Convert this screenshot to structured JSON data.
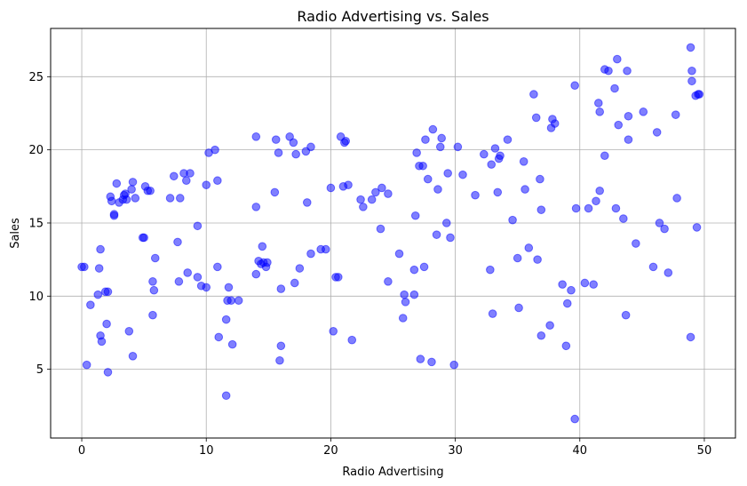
{
  "chart_data": {
    "type": "scatter",
    "title": "Radio Advertising vs. Sales",
    "xlabel": "Radio Advertising",
    "ylabel": "Sales",
    "xlim": [
      -2.5,
      52.5
    ],
    "ylim": [
      0.3,
      28.3
    ],
    "xticks": [
      0,
      10,
      20,
      30,
      40,
      50
    ],
    "yticks": [
      5,
      10,
      15,
      20,
      25
    ],
    "grid": true,
    "point_color": "#0000ff",
    "point_opacity": 0.5,
    "points": [
      [
        0.0,
        12.0
      ],
      [
        0.2,
        12.0
      ],
      [
        0.4,
        5.3
      ],
      [
        0.7,
        9.4
      ],
      [
        1.3,
        10.1
      ],
      [
        1.4,
        11.9
      ],
      [
        1.5,
        7.3
      ],
      [
        1.6,
        6.9
      ],
      [
        1.5,
        13.2
      ],
      [
        1.9,
        10.3
      ],
      [
        2.1,
        10.3
      ],
      [
        2.0,
        8.1
      ],
      [
        2.1,
        4.8
      ],
      [
        2.3,
        16.8
      ],
      [
        2.4,
        16.5
      ],
      [
        2.6,
        15.6
      ],
      [
        2.6,
        15.5
      ],
      [
        2.8,
        17.7
      ],
      [
        3.0,
        16.4
      ],
      [
        3.3,
        16.6
      ],
      [
        3.4,
        16.9
      ],
      [
        3.5,
        17.0
      ],
      [
        3.6,
        16.6
      ],
      [
        3.8,
        7.6
      ],
      [
        4.0,
        17.3
      ],
      [
        4.1,
        17.8
      ],
      [
        4.1,
        5.9
      ],
      [
        4.3,
        16.7
      ],
      [
        4.9,
        14.0
      ],
      [
        5.0,
        14.0
      ],
      [
        5.1,
        17.5
      ],
      [
        5.3,
        17.2
      ],
      [
        5.5,
        17.2
      ],
      [
        5.7,
        11.0
      ],
      [
        5.8,
        10.4
      ],
      [
        5.7,
        8.7
      ],
      [
        5.9,
        12.6
      ],
      [
        7.1,
        16.7
      ],
      [
        7.4,
        18.2
      ],
      [
        7.7,
        13.7
      ],
      [
        7.8,
        11.0
      ],
      [
        7.9,
        16.7
      ],
      [
        8.2,
        18.4
      ],
      [
        8.4,
        17.9
      ],
      [
        8.5,
        11.6
      ],
      [
        8.7,
        18.4
      ],
      [
        9.3,
        14.8
      ],
      [
        9.3,
        11.3
      ],
      [
        9.6,
        10.7
      ],
      [
        10.0,
        10.6
      ],
      [
        10.0,
        17.6
      ],
      [
        10.2,
        19.8
      ],
      [
        10.7,
        20.0
      ],
      [
        10.9,
        17.9
      ],
      [
        10.9,
        12.0
      ],
      [
        11.0,
        7.2
      ],
      [
        11.6,
        8.4
      ],
      [
        11.6,
        3.2
      ],
      [
        11.7,
        9.7
      ],
      [
        11.8,
        10.6
      ],
      [
        12.0,
        9.7
      ],
      [
        12.1,
        6.7
      ],
      [
        12.6,
        9.7
      ],
      [
        14.0,
        20.9
      ],
      [
        14.0,
        16.1
      ],
      [
        14.0,
        11.5
      ],
      [
        14.2,
        12.4
      ],
      [
        14.4,
        12.2
      ],
      [
        14.5,
        13.4
      ],
      [
        14.6,
        12.3
      ],
      [
        14.8,
        12.0
      ],
      [
        14.9,
        12.3
      ],
      [
        15.5,
        17.1
      ],
      [
        15.6,
        20.7
      ],
      [
        15.8,
        19.8
      ],
      [
        16.0,
        10.5
      ],
      [
        16.0,
        6.6
      ],
      [
        15.9,
        5.6
      ],
      [
        16.7,
        20.9
      ],
      [
        17.0,
        20.5
      ],
      [
        17.1,
        10.9
      ],
      [
        17.2,
        19.7
      ],
      [
        17.5,
        11.9
      ],
      [
        18.0,
        19.9
      ],
      [
        18.1,
        16.4
      ],
      [
        18.4,
        20.2
      ],
      [
        18.4,
        12.9
      ],
      [
        19.2,
        13.2
      ],
      [
        19.6,
        13.2
      ],
      [
        20.0,
        17.4
      ],
      [
        20.2,
        7.6
      ],
      [
        20.4,
        11.3
      ],
      [
        20.6,
        11.3
      ],
      [
        20.8,
        20.9
      ],
      [
        21.0,
        17.5
      ],
      [
        21.1,
        20.5
      ],
      [
        21.2,
        20.6
      ],
      [
        21.4,
        17.6
      ],
      [
        21.7,
        7.0
      ],
      [
        22.4,
        16.6
      ],
      [
        22.6,
        16.1
      ],
      [
        23.3,
        16.6
      ],
      [
        23.6,
        17.1
      ],
      [
        24.0,
        14.6
      ],
      [
        24.1,
        17.4
      ],
      [
        24.6,
        17.0
      ],
      [
        24.6,
        11.0
      ],
      [
        25.5,
        12.9
      ],
      [
        25.8,
        8.5
      ],
      [
        25.9,
        10.1
      ],
      [
        26.0,
        9.6
      ],
      [
        26.7,
        11.8
      ],
      [
        26.7,
        10.1
      ],
      [
        26.8,
        15.5
      ],
      [
        26.9,
        19.8
      ],
      [
        27.1,
        18.9
      ],
      [
        27.2,
        5.7
      ],
      [
        27.4,
        18.9
      ],
      [
        27.5,
        12.0
      ],
      [
        27.6,
        20.7
      ],
      [
        27.8,
        18.0
      ],
      [
        28.1,
        5.5
      ],
      [
        28.2,
        21.4
      ],
      [
        28.5,
        14.2
      ],
      [
        28.6,
        17.3
      ],
      [
        28.8,
        20.2
      ],
      [
        28.9,
        20.8
      ],
      [
        29.3,
        15.0
      ],
      [
        29.4,
        18.4
      ],
      [
        29.6,
        14.0
      ],
      [
        29.9,
        5.3
      ],
      [
        30.2,
        20.2
      ],
      [
        30.6,
        18.3
      ],
      [
        31.6,
        16.9
      ],
      [
        32.3,
        19.7
      ],
      [
        32.8,
        11.8
      ],
      [
        32.9,
        19.0
      ],
      [
        33.0,
        8.8
      ],
      [
        33.2,
        20.1
      ],
      [
        33.4,
        17.1
      ],
      [
        33.5,
        19.4
      ],
      [
        33.6,
        19.6
      ],
      [
        34.2,
        20.7
      ],
      [
        34.6,
        15.2
      ],
      [
        35.0,
        12.6
      ],
      [
        35.1,
        9.2
      ],
      [
        35.5,
        19.2
      ],
      [
        35.6,
        17.3
      ],
      [
        35.9,
        13.3
      ],
      [
        36.3,
        23.8
      ],
      [
        36.5,
        22.2
      ],
      [
        36.6,
        12.5
      ],
      [
        36.8,
        18.0
      ],
      [
        36.9,
        15.9
      ],
      [
        36.9,
        7.3
      ],
      [
        37.6,
        8.0
      ],
      [
        37.7,
        21.5
      ],
      [
        37.8,
        22.1
      ],
      [
        38.0,
        21.8
      ],
      [
        38.6,
        10.8
      ],
      [
        38.9,
        6.6
      ],
      [
        39.0,
        9.5
      ],
      [
        39.3,
        10.4
      ],
      [
        39.6,
        24.4
      ],
      [
        39.7,
        16.0
      ],
      [
        39.6,
        1.6
      ],
      [
        40.4,
        10.9
      ],
      [
        40.7,
        16.0
      ],
      [
        41.1,
        10.8
      ],
      [
        41.3,
        16.5
      ],
      [
        41.5,
        23.2
      ],
      [
        41.6,
        17.2
      ],
      [
        41.6,
        22.6
      ],
      [
        42.0,
        19.6
      ],
      [
        42.0,
        25.5
      ],
      [
        42.3,
        25.4
      ],
      [
        42.8,
        24.2
      ],
      [
        43.0,
        26.2
      ],
      [
        42.9,
        16.0
      ],
      [
        43.1,
        21.7
      ],
      [
        43.5,
        15.3
      ],
      [
        43.7,
        8.7
      ],
      [
        43.8,
        25.4
      ],
      [
        43.9,
        22.3
      ],
      [
        43.9,
        20.7
      ],
      [
        44.5,
        13.6
      ],
      [
        45.1,
        22.6
      ],
      [
        45.9,
        12.0
      ],
      [
        46.2,
        21.2
      ],
      [
        46.4,
        15.0
      ],
      [
        46.8,
        14.6
      ],
      [
        47.1,
        11.6
      ],
      [
        47.7,
        22.4
      ],
      [
        47.8,
        16.7
      ],
      [
        48.9,
        27.0
      ],
      [
        49.0,
        24.7
      ],
      [
        49.0,
        25.4
      ],
      [
        48.9,
        7.2
      ],
      [
        49.3,
        23.7
      ],
      [
        49.5,
        23.8
      ],
      [
        49.4,
        14.7
      ],
      [
        49.6,
        23.8
      ]
    ]
  }
}
